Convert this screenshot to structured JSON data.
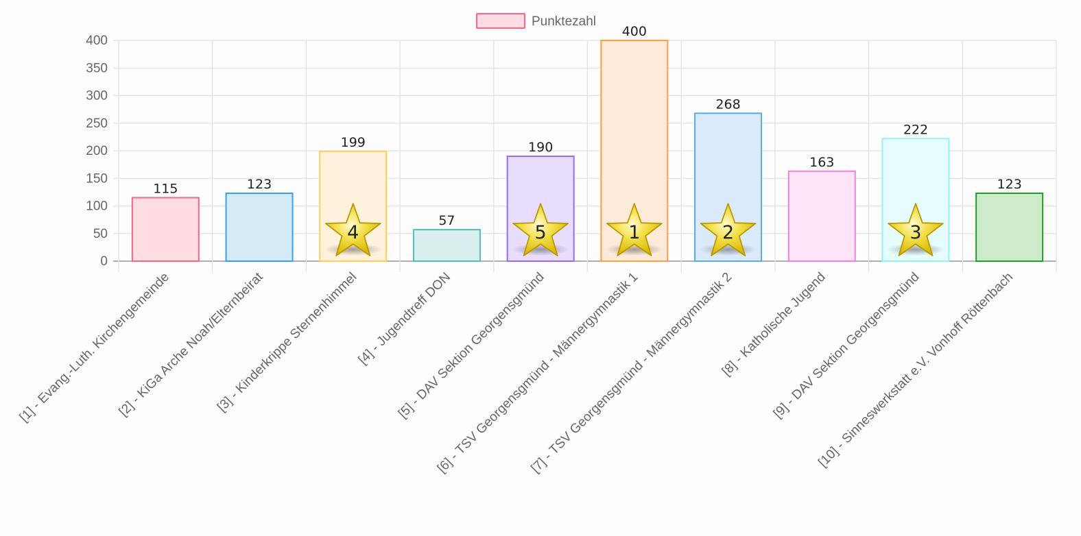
{
  "chart_data": {
    "type": "bar",
    "title": "",
    "xlabel": "",
    "ylabel": "",
    "ylim": [
      0,
      400
    ],
    "yticks": [
      0,
      50,
      100,
      150,
      200,
      250,
      300,
      350,
      400
    ],
    "grid": true,
    "legend": {
      "position": "top",
      "entries": [
        "Punktezahl"
      ],
      "color": "#ff6384",
      "fill": "#ffdde3"
    },
    "categories": [
      "[1] - Evang.-Luth. Kirchengemeinde",
      "[2] - KiGa Arche Noah/Elternbeirat",
      "[3] - Kinderkrippe Sternenhimmel",
      "[4] - Jugendtreff DON",
      "[5] - DAV Sektion Georgensgmünd",
      "[6] - TSV Georgensgmünd - Männergymnastik 1",
      "[7] - TSV Georgensgmünd - Männergymnastik 2",
      "[8] - Katholische Jugend",
      "[9] - DAV Sektion Georgensgmünd",
      "[10] - Sinneswerkstatt e.V. Vonhoff Röttenbach"
    ],
    "series": [
      {
        "name": "Punktezahl",
        "values": [
          115,
          123,
          199,
          57,
          190,
          400,
          268,
          163,
          222,
          123
        ],
        "data_labels": [
          "115",
          "123",
          "199",
          "57",
          "190",
          "400",
          "268",
          "163",
          "222",
          "123"
        ],
        "border_colors": [
          "#ff6384",
          "#36a2eb",
          "#ffcd56",
          "#4bc0c0",
          "#9966ff",
          "#ff9f40",
          "#5aa9f0",
          "#f77ee0",
          "#8ff4f4",
          "#1aa31a"
        ],
        "fill_colors": [
          "#ffdde3",
          "#d5eaf7",
          "#fff2dc",
          "#d8efee",
          "#e8ddfd",
          "#feead8",
          "#dbeafb",
          "#fde4f7",
          "#e6fdfd",
          "#cdebcb"
        ]
      }
    ],
    "rank_stars": [
      {
        "category_index": 5,
        "rank": "1"
      },
      {
        "category_index": 6,
        "rank": "2"
      },
      {
        "category_index": 8,
        "rank": "3"
      },
      {
        "category_index": 2,
        "rank": "4"
      },
      {
        "category_index": 4,
        "rank": "5"
      }
    ]
  }
}
